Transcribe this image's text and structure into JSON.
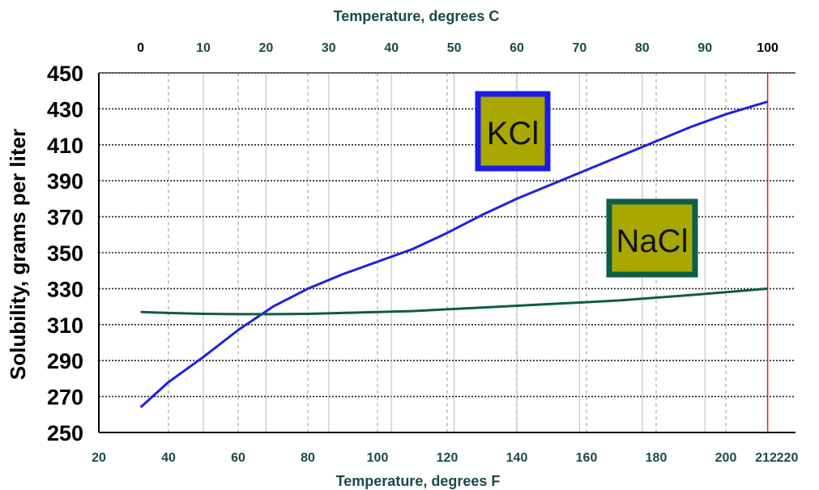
{
  "chart_data": {
    "type": "line",
    "title": "",
    "ylabel": "Solubility, grams per liter",
    "xlabel_bottom": "Temperature, degrees F",
    "xlabel_top": "Temperature, degrees C",
    "ylim": [
      250,
      450
    ],
    "xlim_f": [
      20,
      220
    ],
    "y_ticks": [
      "450",
      "430",
      "410",
      "390",
      "370",
      "350",
      "330",
      "310",
      "290",
      "270",
      "250"
    ],
    "x_ticks_f": [
      "20",
      "40",
      "60",
      "80",
      "100",
      "120",
      "140",
      "160",
      "180",
      "200",
      "212",
      "220"
    ],
    "x_ticks_c": [
      "0",
      "10",
      "20",
      "30",
      "40",
      "50",
      "60",
      "70",
      "80",
      "90",
      "100"
    ],
    "grid": true,
    "boiling_point_f": 212,
    "series": [
      {
        "name": "KCl",
        "color": "#2020e0",
        "x": [
          32,
          40,
          50,
          60,
          70,
          80,
          90,
          100,
          110,
          120,
          130,
          140,
          150,
          160,
          170,
          180,
          190,
          200,
          212
        ],
        "y": [
          264,
          278,
          292,
          307,
          320,
          330,
          338,
          345,
          352,
          361,
          371,
          380,
          388,
          396,
          404,
          412,
          420,
          427,
          434
        ]
      },
      {
        "name": "NaCl",
        "color": "#0e5c4a",
        "x": [
          32,
          40,
          50,
          60,
          70,
          80,
          90,
          100,
          110,
          120,
          130,
          140,
          150,
          160,
          170,
          180,
          190,
          200,
          212
        ],
        "y": [
          317,
          316.5,
          316,
          315.8,
          315.8,
          316,
          316.5,
          317,
          317.5,
          318.5,
          319.5,
          320.5,
          321.5,
          322.5,
          323.5,
          325,
          326.5,
          328,
          330
        ]
      }
    ]
  }
}
